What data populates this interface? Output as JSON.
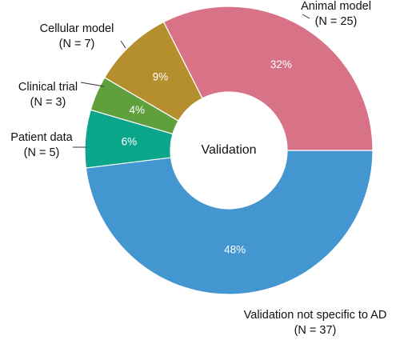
{
  "chart_data": {
    "type": "pie",
    "center_label": "Validation",
    "slices": [
      {
        "label": "Validation not specific to AD",
        "n_text": "(N = 37)",
        "n": 37,
        "pct_text": "48%",
        "color": "#4396d0"
      },
      {
        "label": "Patient data",
        "n_text": "(N = 5)",
        "n": 5,
        "pct_text": "6%",
        "color": "#0aa58a"
      },
      {
        "label": "Clinical trial",
        "n_text": "(N = 3)",
        "n": 3,
        "pct_text": "4%",
        "color": "#5fa03d"
      },
      {
        "label": "Cellular model",
        "n_text": "(N = 7)",
        "n": 7,
        "pct_text": "9%",
        "color": "#b58e2e"
      },
      {
        "label": "Animal model",
        "n_text": "(N = 25)",
        "n": 25,
        "pct_text": "32%",
        "color": "#d87286"
      }
    ]
  }
}
